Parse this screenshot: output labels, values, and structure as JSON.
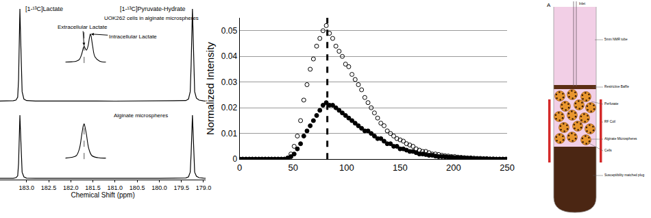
{
  "chart_data": [
    {
      "type": "line",
      "x_label": "Chemical Shift (ppm)",
      "xlim": [
        183.6,
        178.95
      ],
      "xticks": [
        {
          "value": 183,
          "label": "183.0"
        },
        182.5,
        {
          "value": 182,
          "label": "182.0"
        },
        181.5,
        {
          "value": 181,
          "label": "181.0"
        },
        180.5,
        {
          "value": 180,
          "label": "180.0"
        },
        179.5,
        {
          "value": 179,
          "label": "179.0"
        }
      ],
      "ylim": [
        0,
        1.05
      ],
      "tick_labels": "x",
      "x": [
        183.6,
        183.4,
        183.3,
        183.24,
        183.2,
        183.18,
        183.16,
        183.15,
        183.14,
        183.12,
        183.1,
        183.06,
        183.0,
        182.8,
        182.5,
        182.2,
        182.0,
        181.7,
        181.4,
        181.0,
        180.7,
        180.4,
        180.0,
        179.7,
        179.5,
        179.4,
        179.34,
        179.3,
        179.28,
        179.26,
        179.25,
        179.24,
        179.22,
        179.2,
        179.16,
        179.1,
        179.0,
        178.95
      ],
      "series": [
        {
          "name": "UOK262 cells in alginate microspheres",
          "color": "#000000",
          "values": [
            0.02,
            0.021,
            0.023,
            0.03,
            0.06,
            0.25,
            0.75,
            1.0,
            0.8,
            0.35,
            0.12,
            0.04,
            0.025,
            0.02,
            0.021,
            0.019,
            0.02,
            0.021,
            0.02,
            0.019,
            0.02,
            0.021,
            0.02,
            0.021,
            0.022,
            0.025,
            0.04,
            0.12,
            0.4,
            0.85,
            1.0,
            0.82,
            0.35,
            0.12,
            0.05,
            0.03,
            0.022,
            0.02
          ]
        },
        {
          "name": "Alginate microspheres",
          "color": "#000000",
          "values": [
            0.02,
            0.021,
            0.02,
            0.028,
            0.055,
            0.24,
            0.72,
            0.95,
            0.76,
            0.33,
            0.11,
            0.04,
            0.022,
            0.02,
            0.019,
            0.021,
            0.02,
            0.019,
            0.02,
            0.021,
            0.02,
            0.019,
            0.02,
            0.021,
            0.02,
            0.024,
            0.04,
            0.11,
            0.38,
            0.8,
            0.95,
            0.78,
            0.33,
            0.11,
            0.05,
            0.028,
            0.021,
            0.02
          ]
        }
      ],
      "peak_labels": [
        {
          "text": "[1-¹³C]Lactate",
          "x": 183.15
        },
        {
          "text": "[1-¹³C]Pyruvate-Hydrate",
          "x": 179.25
        }
      ],
      "insets": [
        {
          "xlim": [
            183.45,
            182.88
          ],
          "ylim": [
            0,
            1.05
          ],
          "reference_line": 183.18,
          "x": [
            183.42,
            183.34,
            183.28,
            183.24,
            183.21,
            183.19,
            183.18,
            183.17,
            183.15,
            183.13,
            183.11,
            183.1,
            183.09,
            183.07,
            183.04,
            182.98,
            182.9
          ],
          "values": [
            0.03,
            0.04,
            0.06,
            0.12,
            0.3,
            0.5,
            0.55,
            0.5,
            0.42,
            0.55,
            0.85,
            0.95,
            0.88,
            0.55,
            0.2,
            0.06,
            0.03
          ],
          "annotations": [
            {
              "text": "Extracellular Lactate",
              "x": 183.18,
              "y": 0.55
            },
            {
              "text": "Intracellular Lactate",
              "x": 183.1,
              "y": 0.95
            }
          ]
        },
        {
          "xlim": [
            183.45,
            182.88
          ],
          "ylim": [
            0,
            1.05
          ],
          "reference_line": 183.18,
          "x": [
            183.42,
            183.34,
            183.28,
            183.24,
            183.21,
            183.19,
            183.18,
            183.17,
            183.15,
            183.12,
            183.08,
            183.0,
            182.9
          ],
          "values": [
            0.03,
            0.05,
            0.1,
            0.3,
            0.7,
            0.95,
            1.0,
            0.93,
            0.7,
            0.3,
            0.1,
            0.04,
            0.03
          ]
        }
      ]
    },
    {
      "type": "scatter",
      "y_label": "Normalized Intensity",
      "xlim": [
        0,
        250
      ],
      "xticks": [
        0,
        50,
        100,
        150,
        200,
        250
      ],
      "ylim": [
        0,
        0.055
      ],
      "yticks": [
        0,
        0.01,
        0.02,
        0.03,
        0.04,
        0.05
      ],
      "grid": true,
      "reference_line": 82,
      "x": [
        0,
        3,
        6,
        9,
        12,
        15,
        18,
        21,
        24,
        27,
        30,
        33,
        36,
        39,
        42,
        45,
        48,
        51,
        54,
        57,
        60,
        63,
        66,
        69,
        72,
        75,
        78,
        81,
        84,
        87,
        90,
        93,
        96,
        99,
        102,
        105,
        108,
        111,
        114,
        117,
        120,
        123,
        126,
        129,
        132,
        135,
        138,
        141,
        144,
        147,
        150,
        153,
        156,
        159,
        162,
        165,
        168,
        171,
        174,
        177,
        180,
        183,
        186,
        189,
        192,
        195,
        198,
        201,
        204,
        207,
        210,
        213,
        216,
        219,
        222,
        225,
        228,
        231,
        234,
        237,
        240,
        243,
        246,
        249
      ],
      "series": [
        {
          "color": "#000000",
          "marker": "open circle",
          "values": [
            0,
            0,
            0,
            0,
            0,
            0,
            0,
            0,
            0,
            0,
            0,
            0,
            0,
            0,
            0,
            0.0005,
            0.002,
            0.005,
            0.009,
            0.015,
            0.023,
            0.029,
            0.035,
            0.039,
            0.044,
            0.047,
            0.05,
            0.052,
            0.049,
            0.047,
            0.044,
            0.042,
            0.04,
            0.037,
            0.036,
            0.033,
            0.031,
            0.029,
            0.027,
            0.024,
            0.022,
            0.02,
            0.018,
            0.016,
            0.014,
            0.013,
            0.011,
            0.01,
            0.009,
            0.008,
            0.0075,
            0.007,
            0.006,
            0.0055,
            0.005,
            0.004,
            0.0035,
            0.003,
            0.003,
            0.0025,
            0.002,
            0.002,
            0.0018,
            0.0015,
            0.0013,
            0.0012,
            0.001,
            0.001,
            0.0008,
            0.0007,
            0.0006,
            0.0005,
            0.0005,
            0.0004,
            0.0003,
            0.0003,
            0.0002,
            0.0002,
            0.0001,
            0.0001,
            0,
            0,
            0,
            0
          ]
        },
        {
          "color": "#000000",
          "marker": "filled circle",
          "values": [
            0,
            0,
            0,
            0,
            0,
            0,
            0,
            0,
            0,
            0,
            0,
            0,
            0,
            0,
            0,
            0.0003,
            0.001,
            0.002,
            0.004,
            0.006,
            0.009,
            0.011,
            0.013,
            0.015,
            0.017,
            0.019,
            0.021,
            0.022,
            0.021,
            0.021,
            0.02,
            0.019,
            0.018,
            0.017,
            0.016,
            0.015,
            0.014,
            0.013,
            0.012,
            0.011,
            0.011,
            0.01,
            0.009,
            0.008,
            0.008,
            0.007,
            0.006,
            0.006,
            0.005,
            0.005,
            0.004,
            0.004,
            0.0035,
            0.003,
            0.003,
            0.0025,
            0.002,
            0.002,
            0.0018,
            0.0015,
            0.0015,
            0.0012,
            0.001,
            0.001,
            0.0009,
            0.0008,
            0.0007,
            0.0006,
            0.0005,
            0.0005,
            0.0004,
            0.0003,
            0.0003,
            0.0002,
            0.0002,
            0.0001,
            0.0001,
            0.0001,
            0,
            0,
            0,
            0,
            0,
            0
          ]
        }
      ]
    }
  ],
  "diagram": {
    "panel_label": "A",
    "labels": [
      {
        "part": "inlet",
        "text": "Inlet"
      },
      {
        "part": "tube",
        "text": "5mm NMR tube"
      },
      {
        "part": "baffle",
        "text": "Restrictive Baffle"
      },
      {
        "part": "perfusate",
        "text": "Perfusate"
      },
      {
        "part": "coil",
        "text": "RF Coil"
      },
      {
        "part": "microspheres",
        "text": "Alginate Microspheres"
      },
      {
        "part": "cells",
        "text": "Cells"
      },
      {
        "part": "plug",
        "text": "Susceptibility matched plug"
      }
    ]
  }
}
